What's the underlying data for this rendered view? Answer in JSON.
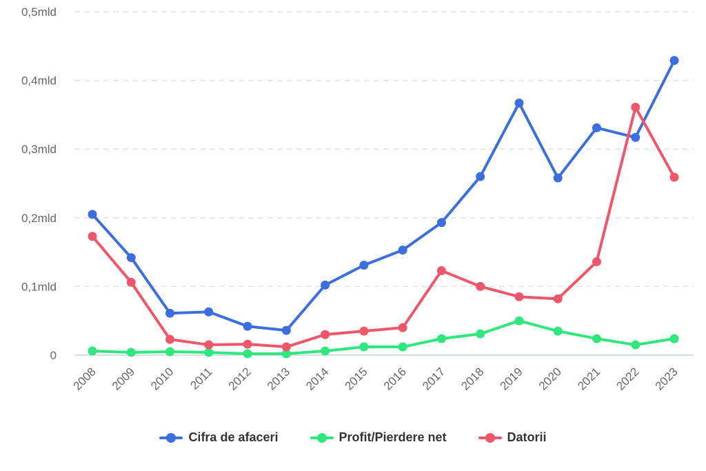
{
  "chart_data": {
    "type": "line",
    "x": [
      "2008",
      "2009",
      "2010",
      "2011",
      "2012",
      "2013",
      "2014",
      "2015",
      "2016",
      "2017",
      "2018",
      "2019",
      "2020",
      "2021",
      "2022",
      "2023"
    ],
    "y_ticks": [
      {
        "value": 0,
        "label": "0"
      },
      {
        "value": 0.1,
        "label": "0,1mld"
      },
      {
        "value": 0.2,
        "label": "0,2mld"
      },
      {
        "value": 0.3,
        "label": "0,3mld"
      },
      {
        "value": 0.4,
        "label": "0,4mld"
      },
      {
        "value": 0.5,
        "label": "0,5mld"
      }
    ],
    "ylim": [
      0,
      0.5
    ],
    "grid": true,
    "legend_position": "bottom",
    "series": [
      {
        "name": "Cifra de afaceri",
        "color": "#3b6fe0",
        "values": [
          0.205,
          0.142,
          0.061,
          0.063,
          0.042,
          0.036,
          0.102,
          0.131,
          0.153,
          0.193,
          0.26,
          0.367,
          0.258,
          0.331,
          0.317,
          0.429
        ]
      },
      {
        "name": "Profit/Pierdere net",
        "color": "#2ee87e",
        "values": [
          0.006,
          0.004,
          0.005,
          0.004,
          0.002,
          0.002,
          0.006,
          0.012,
          0.012,
          0.024,
          0.031,
          0.05,
          0.035,
          0.024,
          0.015,
          0.024
        ]
      },
      {
        "name": "Datorii",
        "color": "#f0566a",
        "values": [
          0.173,
          0.106,
          0.023,
          0.015,
          0.016,
          0.012,
          0.03,
          0.035,
          0.04,
          0.123,
          0.1,
          0.085,
          0.082,
          0.136,
          0.361,
          0.259
        ]
      }
    ]
  }
}
